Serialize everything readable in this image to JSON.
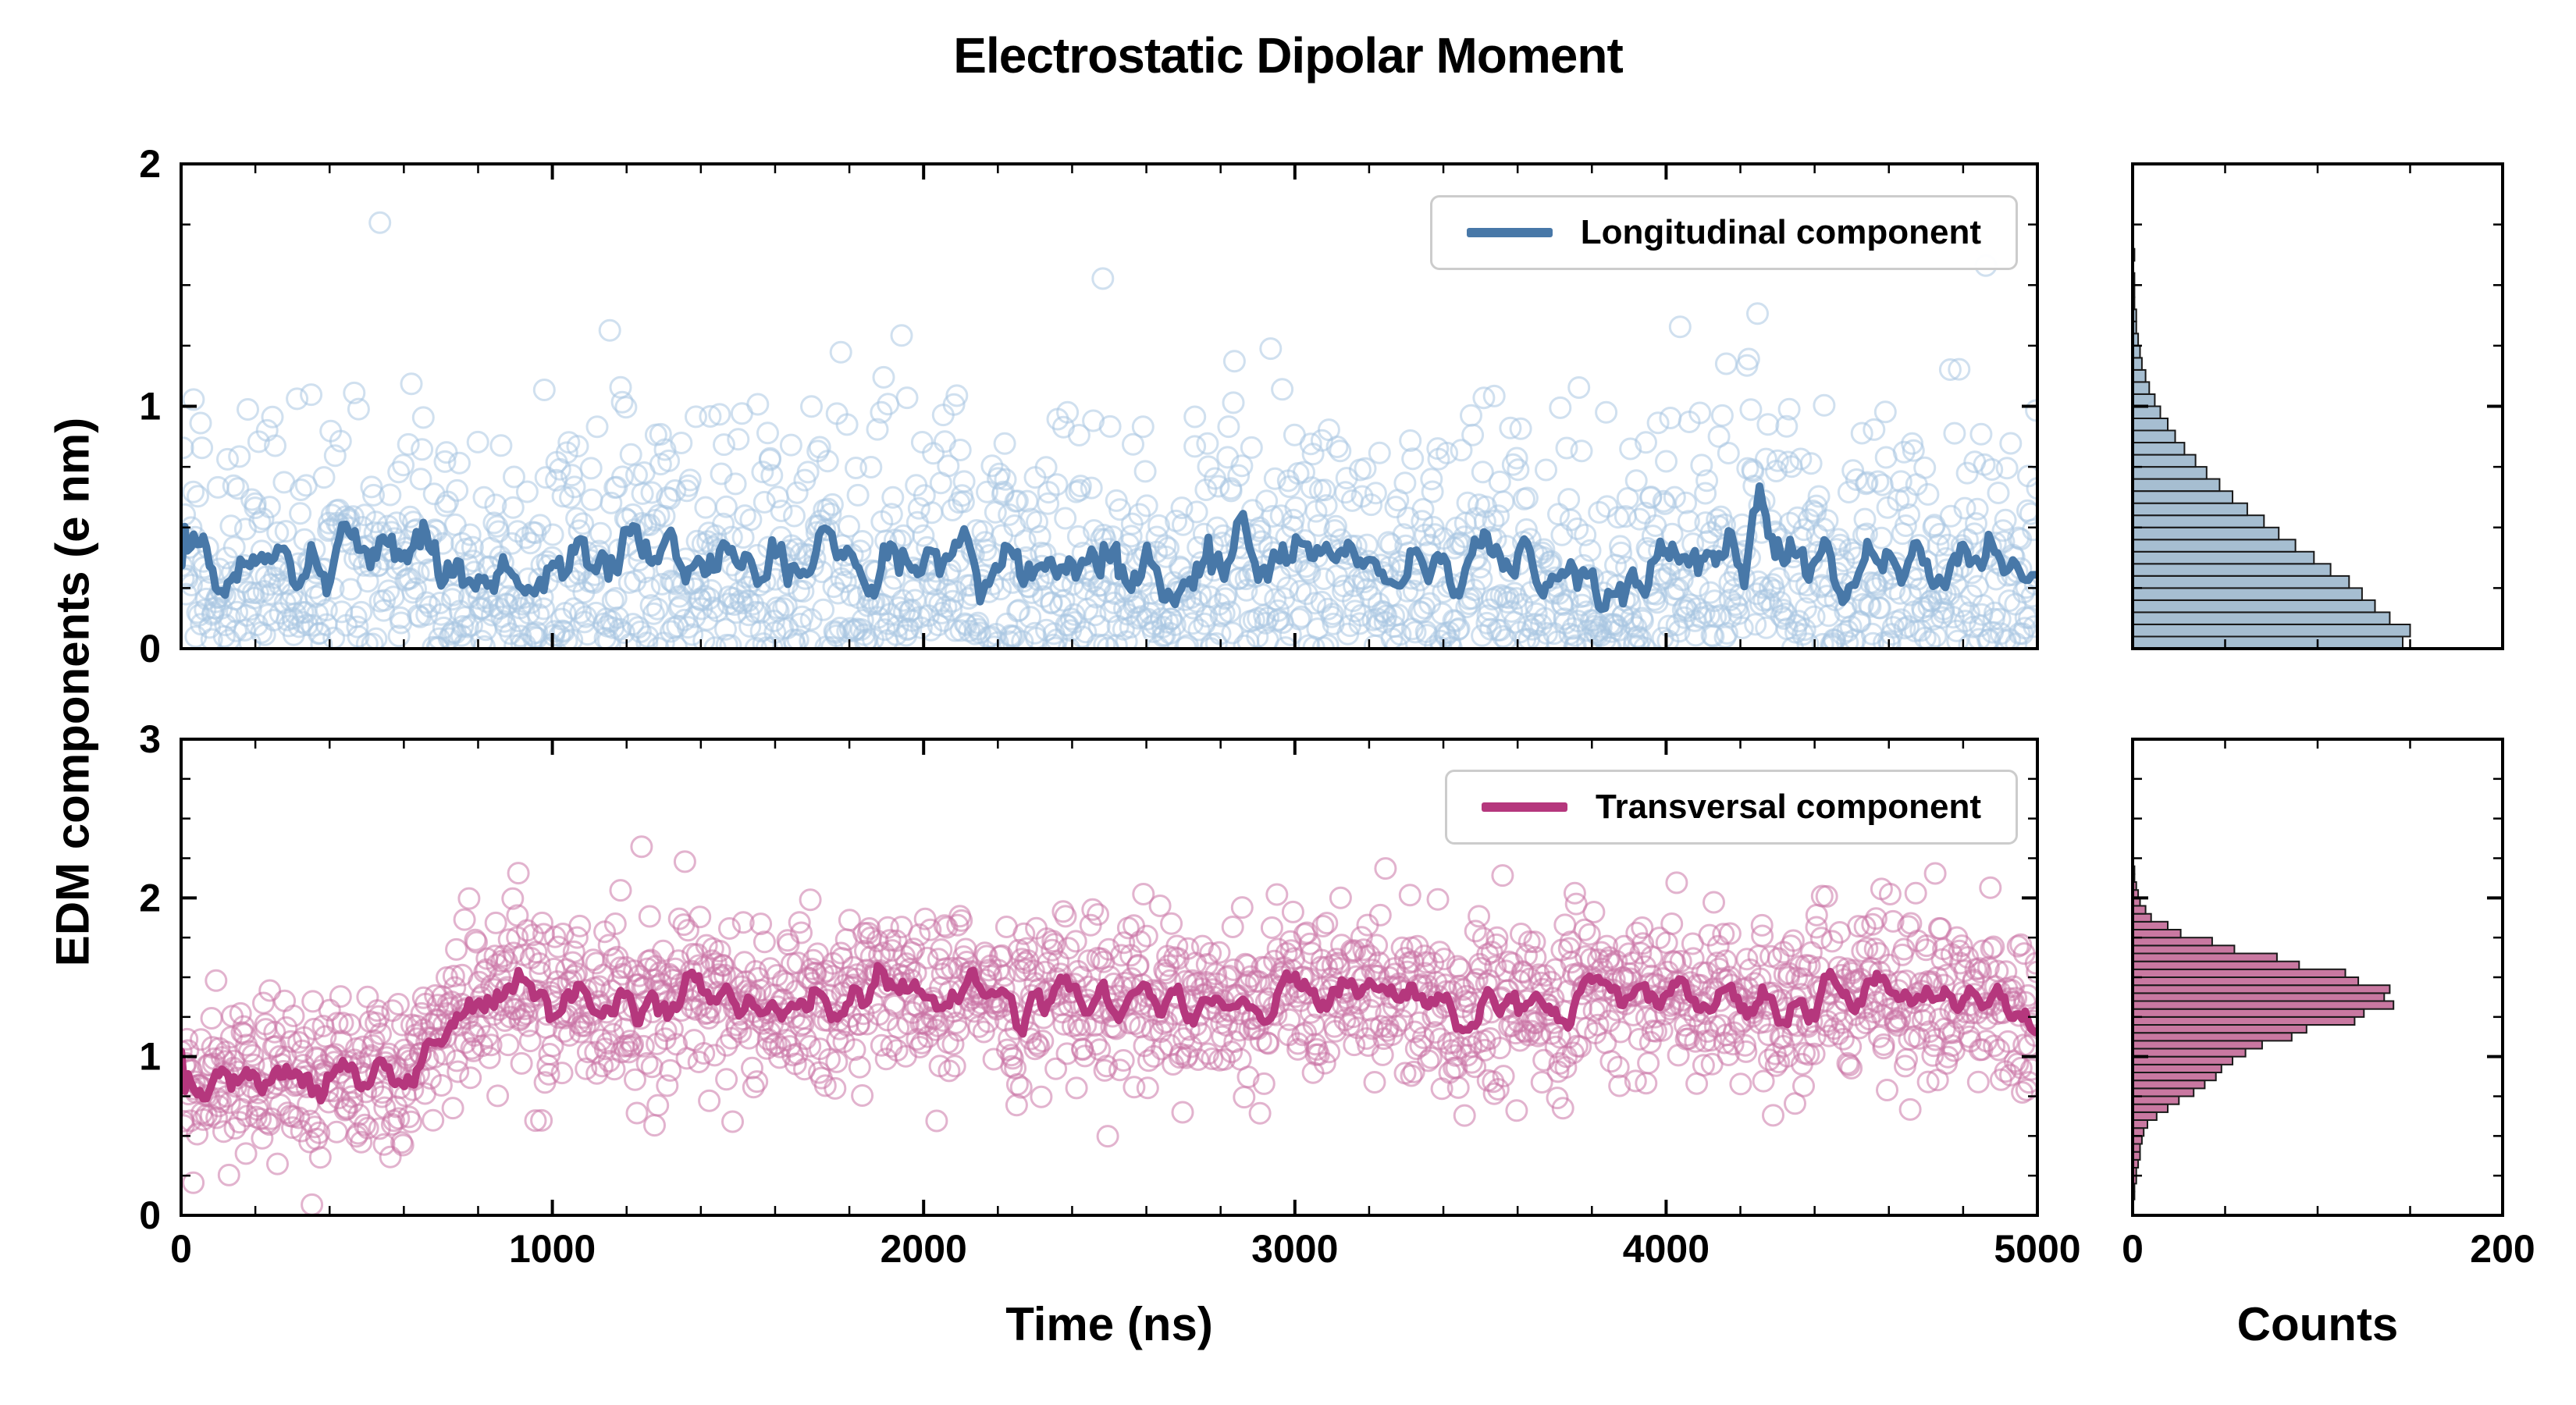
{
  "title": "Electrostatic Dipolar Moment",
  "axes": {
    "y_label": "EDM components (e nm)",
    "x_label_time": "Time (ns)",
    "x_label_counts": "Counts"
  },
  "colors": {
    "longitudinal_line": "#4878a8",
    "longitudinal_scatter": "#a9c7e2",
    "longitudinal_hist_fill": "#97b3c9",
    "transversal_line": "#b5377d",
    "transversal_scatter": "#cb74a5",
    "transversal_hist_fill": "#c06090",
    "hist_edge": "#1a1a1a",
    "axis": "#000000",
    "legend_border": "#cccccc"
  },
  "chart_data": [
    {
      "type": "scatter",
      "panel": "top-left",
      "legend_label": "Longitudinal component",
      "xlim": [
        0,
        5000
      ],
      "ylim": [
        0,
        2
      ],
      "xticks": [
        0,
        1000,
        2000,
        3000,
        4000,
        5000
      ],
      "yticks": [
        0,
        1,
        2
      ],
      "x_tick_labels": false,
      "series_model": {
        "n": 1800,
        "kind": "half-normal",
        "sigma": 0.45,
        "mean_level": 0.36,
        "seed": 42
      },
      "overlay_line": "moving-average-window-15"
    },
    {
      "type": "scatter",
      "panel": "bottom-left",
      "legend_label": "Transversal component",
      "xlim": [
        0,
        5000
      ],
      "ylim": [
        0,
        3
      ],
      "xticks": [
        0,
        1000,
        2000,
        3000,
        4000,
        5000
      ],
      "yticks": [
        0,
        1,
        2,
        3
      ],
      "x_tick_labels": true,
      "series_model": {
        "n": 1800,
        "kind": "step-gaussian",
        "mean_before": 0.85,
        "mean_after": 1.37,
        "step_start_ns": 600,
        "step_end_ns": 760,
        "sigma": 0.27,
        "seed": 1337
      },
      "overlay_line": "moving-average-window-15"
    },
    {
      "type": "histogram",
      "panel": "top-right",
      "orientation": "horizontal",
      "xlim": [
        0,
        200
      ],
      "ylim": [
        0,
        2
      ],
      "xticks": [
        0,
        200
      ],
      "yticks": [
        0,
        1,
        2
      ],
      "x_tick_labels": false,
      "bin_start": 0,
      "bin_width": 0.05,
      "counts": [
        146,
        150,
        139,
        131,
        124,
        117,
        107,
        98,
        88,
        79,
        71,
        62,
        54,
        47,
        40,
        34,
        28,
        23,
        19,
        15,
        12,
        9,
        7,
        5,
        4,
        3,
        2,
        2,
        1,
        1,
        1,
        0,
        1,
        0,
        0,
        0,
        0,
        0,
        0,
        0
      ]
    },
    {
      "type": "histogram",
      "panel": "bottom-right",
      "orientation": "horizontal",
      "xlim": [
        0,
        200
      ],
      "ylim": [
        0,
        3
      ],
      "xticks": [
        0,
        200
      ],
      "yticks": [
        0,
        1,
        2,
        3
      ],
      "x_tick_labels": true,
      "bin_start": 0,
      "bin_width": 0.05,
      "counts": [
        0,
        0,
        1,
        1,
        2,
        2,
        3,
        4,
        4,
        5,
        6,
        8,
        13,
        19,
        25,
        33,
        39,
        45,
        48,
        54,
        61,
        70,
        86,
        94,
        120,
        125,
        141,
        136,
        139,
        122,
        115,
        90,
        78,
        55,
        43,
        26,
        19,
        10,
        7,
        4,
        3,
        2,
        1,
        1,
        0,
        0,
        0,
        0,
        0,
        0,
        0,
        0,
        0,
        0,
        0,
        0,
        0,
        0,
        0,
        0
      ]
    }
  ]
}
